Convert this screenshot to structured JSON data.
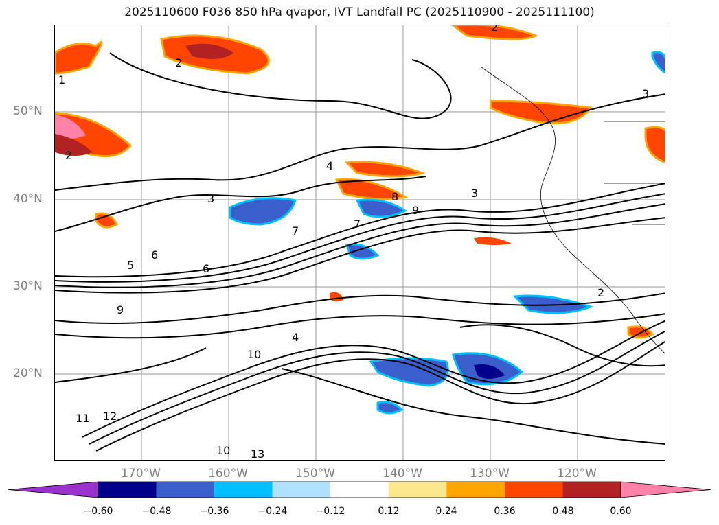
{
  "title": "2025110600 F036 850 hPa qvapor, IVT Landfall PC (2025110900 - 2025111100)",
  "latitude_labels": [
    "50°N",
    "40°N",
    "30°N",
    "20°N"
  ],
  "longitude_labels": [
    "170°W",
    "160°W",
    "150°W",
    "140°W",
    "130°W",
    "120°W"
  ],
  "colorbar": {
    "tick_labels": [
      "−0.60",
      "−0.48",
      "−0.36",
      "−0.24",
      "−0.12",
      "0.12",
      "0.24",
      "0.36",
      "0.48",
      "0.60"
    ],
    "colors": [
      "#9a32cd",
      "#00008b",
      "#3a5fcd",
      "#00bfff",
      "#b0e2ff",
      "#ffffff",
      "#fee88d",
      "#ffa500",
      "#ff4500",
      "#b22222",
      "#ff82ab"
    ]
  },
  "contour_labels": [
    "2",
    "2",
    "1",
    "2",
    "3",
    "3",
    "4",
    "4",
    "5",
    "6",
    "6",
    "7",
    "7",
    "8",
    "9",
    "9",
    "10",
    "10",
    "11",
    "12",
    "13",
    "3",
    "2"
  ],
  "styles": {
    "contour_color": "#000000",
    "grid_color": "#9a9a9a"
  }
}
